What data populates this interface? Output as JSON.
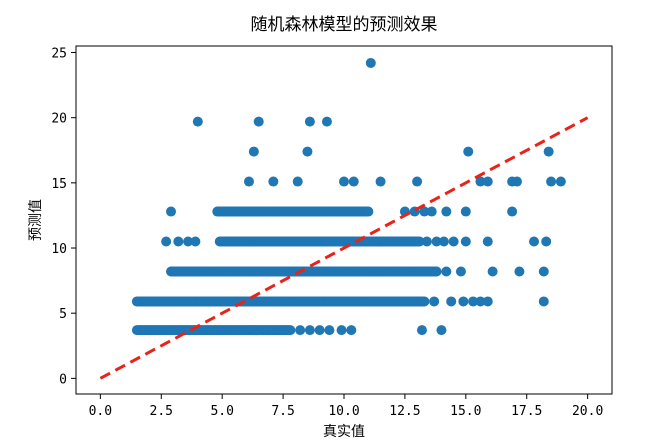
{
  "chart_data": {
    "type": "scatter",
    "title": "随机森林模型的预测效果",
    "xlabel": "真实值",
    "ylabel": "预测值",
    "xlim": [
      -1,
      21
    ],
    "ylim": [
      -1.2,
      25.5
    ],
    "x_ticks": [
      "0.0",
      "2.5",
      "5.0",
      "7.5",
      "10.0",
      "12.5",
      "15.0",
      "17.5",
      "20.0"
    ],
    "y_ticks": [
      "0",
      "5",
      "10",
      "15",
      "20",
      "25"
    ],
    "grid": false,
    "point_color": "#1f77b4",
    "series": [
      {
        "name": "",
        "bands": [
          {
            "y": 3.7,
            "x_from": 1.5,
            "x_to": 7.8
          },
          {
            "y": 5.9,
            "x_from": 1.5,
            "x_to": 13.3
          },
          {
            "y": 8.2,
            "x_from": 2.9,
            "x_to": 13.8
          },
          {
            "y": 10.5,
            "x_from": 4.9,
            "x_to": 13.1
          },
          {
            "y": 12.8,
            "x_from": 4.8,
            "x_to": 11.0
          }
        ],
        "points": [
          [
            8.2,
            3.7
          ],
          [
            8.6,
            3.7
          ],
          [
            9.0,
            3.7
          ],
          [
            9.4,
            3.7
          ],
          [
            9.9,
            3.7
          ],
          [
            10.3,
            3.7
          ],
          [
            13.2,
            3.7
          ],
          [
            14.0,
            3.7
          ],
          [
            13.7,
            5.9
          ],
          [
            14.4,
            5.9
          ],
          [
            14.9,
            5.9
          ],
          [
            15.3,
            5.9
          ],
          [
            15.6,
            5.9
          ],
          [
            15.9,
            5.9
          ],
          [
            18.2,
            5.9
          ],
          [
            14.2,
            8.2
          ],
          [
            14.8,
            8.2
          ],
          [
            16.1,
            8.2
          ],
          [
            17.2,
            8.2
          ],
          [
            18.2,
            8.2
          ],
          [
            2.7,
            10.5
          ],
          [
            3.2,
            10.5
          ],
          [
            3.6,
            10.5
          ],
          [
            3.9,
            10.5
          ],
          [
            13.4,
            10.5
          ],
          [
            13.8,
            10.5
          ],
          [
            14.1,
            10.5
          ],
          [
            14.5,
            10.5
          ],
          [
            15.0,
            10.5
          ],
          [
            15.9,
            10.5
          ],
          [
            17.8,
            10.5
          ],
          [
            18.3,
            10.5
          ],
          [
            2.9,
            12.8
          ],
          [
            12.5,
            12.8
          ],
          [
            12.9,
            12.8
          ],
          [
            13.3,
            12.8
          ],
          [
            13.6,
            12.8
          ],
          [
            14.2,
            12.8
          ],
          [
            15.0,
            12.8
          ],
          [
            16.9,
            12.8
          ],
          [
            6.1,
            15.1
          ],
          [
            7.1,
            15.1
          ],
          [
            8.1,
            15.1
          ],
          [
            10.0,
            15.1
          ],
          [
            10.4,
            15.1
          ],
          [
            11.5,
            15.1
          ],
          [
            13.0,
            15.1
          ],
          [
            15.6,
            15.1
          ],
          [
            15.9,
            15.1
          ],
          [
            16.9,
            15.1
          ],
          [
            17.1,
            15.1
          ],
          [
            18.5,
            15.1
          ],
          [
            18.9,
            15.1
          ],
          [
            6.3,
            17.4
          ],
          [
            8.5,
            17.4
          ],
          [
            15.1,
            17.4
          ],
          [
            18.4,
            17.4
          ],
          [
            4.0,
            19.7
          ],
          [
            6.5,
            19.7
          ],
          [
            8.6,
            19.7
          ],
          [
            9.3,
            19.7
          ],
          [
            11.1,
            24.2
          ]
        ]
      }
    ],
    "reference_line": {
      "x": [
        0,
        20
      ],
      "y": [
        0,
        20
      ],
      "color": "#e8231a",
      "style": "dashed"
    }
  }
}
